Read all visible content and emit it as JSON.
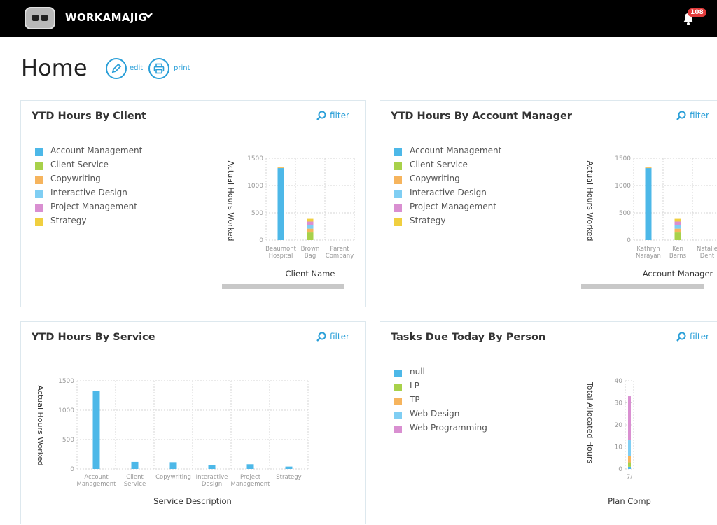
{
  "app": {
    "brand": "WORKAMAJIG",
    "notification_count": "108"
  },
  "page": {
    "title": "Home",
    "edit_label": "edit",
    "print_label": "print"
  },
  "colors": {
    "accent": "#2a9fd8",
    "Account Management": "#4db8e8",
    "Client Service": "#a8d14a",
    "Copywriting": "#f6b45d",
    "Interactive Design": "#7fcef3",
    "Project Management": "#d98fd1",
    "Strategy": "#f0cf3f"
  },
  "panels": {
    "client": {
      "title": "YTD Hours By Client",
      "filter_label": "filter",
      "legend": [
        "Account Management",
        "Client Service",
        "Copywriting",
        "Interactive Design",
        "Project Management",
        "Strategy"
      ]
    },
    "manager": {
      "title": "YTD Hours By Account Manager",
      "filter_label": "filter",
      "legend": [
        "Account Management",
        "Client Service",
        "Copywriting",
        "Interactive Design",
        "Project Management",
        "Strategy"
      ]
    },
    "service": {
      "title": "YTD Hours By Service",
      "filter_label": "filter"
    },
    "tasks": {
      "title": "Tasks Due Today By Person",
      "filter_label": "filter",
      "legend": [
        "null",
        "LP",
        "TP",
        "Web Design",
        "Web Programming"
      ],
      "legend_colors": [
        "#4db8e8",
        "#a8d14a",
        "#f6b45d",
        "#7fcef3",
        "#d98fd1"
      ]
    }
  },
  "chart_data": [
    {
      "id": "client",
      "type": "bar",
      "stacked": true,
      "xlabel": "Client Name",
      "ylabel": "Actual Hours Worked",
      "ylim": [
        0,
        1500
      ],
      "yticks": [
        "0",
        "500",
        "1000",
        "1500"
      ],
      "categories": [
        [
          "Beaumont",
          "Hospital"
        ],
        [
          "Brown",
          "Bag"
        ],
        [
          "Parent",
          "Company"
        ]
      ],
      "series": [
        {
          "name": "Account Management",
          "values": [
            1320,
            0,
            0
          ]
        },
        {
          "name": "Client Service",
          "values": [
            0,
            140,
            0
          ]
        },
        {
          "name": "Copywriting",
          "values": [
            10,
            70,
            0
          ]
        },
        {
          "name": "Interactive Design",
          "values": [
            0,
            60,
            0
          ]
        },
        {
          "name": "Project Management",
          "values": [
            0,
            70,
            0
          ]
        },
        {
          "name": "Strategy",
          "values": [
            10,
            50,
            0
          ]
        }
      ]
    },
    {
      "id": "manager",
      "type": "bar",
      "stacked": true,
      "xlabel": "Account Manager",
      "ylabel": "Actual Hours Worked",
      "ylim": [
        0,
        1500
      ],
      "yticks": [
        "0",
        "500",
        "1000",
        "1500"
      ],
      "categories": [
        [
          "Kathryn",
          "Narayan"
        ],
        [
          "Ken",
          "Barns"
        ],
        [
          "Natalie",
          "Dent"
        ]
      ],
      "series": [
        {
          "name": "Account Management",
          "values": [
            1320,
            0,
            0
          ]
        },
        {
          "name": "Client Service",
          "values": [
            0,
            140,
            0
          ]
        },
        {
          "name": "Copywriting",
          "values": [
            10,
            70,
            0
          ]
        },
        {
          "name": "Interactive Design",
          "values": [
            0,
            60,
            0
          ]
        },
        {
          "name": "Project Management",
          "values": [
            0,
            70,
            0
          ]
        },
        {
          "name": "Strategy",
          "values": [
            10,
            50,
            0
          ]
        }
      ]
    },
    {
      "id": "service",
      "type": "bar",
      "xlabel": "Service Description",
      "ylabel": "Actual Hours Worked",
      "ylim": [
        0,
        1500
      ],
      "yticks": [
        "0",
        "500",
        "1000",
        "1500"
      ],
      "categories": [
        [
          "Account",
          "Management"
        ],
        [
          "Client",
          "Service"
        ],
        [
          "Copywriting"
        ],
        [
          "Interactive",
          "Design"
        ],
        [
          "Project",
          "Management"
        ],
        [
          "Strategy"
        ]
      ],
      "values": [
        1330,
        120,
        115,
        60,
        80,
        40
      ]
    },
    {
      "id": "tasks",
      "type": "bar",
      "stacked": true,
      "xlabel": "Plan Comp",
      "ylabel": "Total Allocated Hours",
      "ylim": [
        0,
        40
      ],
      "yticks": [
        "0",
        "10",
        "20",
        "30",
        "40"
      ],
      "categories": [
        [
          "7/"
        ]
      ],
      "series": [
        {
          "name": "null",
          "values": [
            1
          ]
        },
        {
          "name": "LP",
          "values": [
            2
          ]
        },
        {
          "name": "TP",
          "values": [
            3
          ]
        },
        {
          "name": "Web Design",
          "values": [
            7
          ]
        },
        {
          "name": "Web Programming",
          "values": [
            20
          ]
        }
      ]
    }
  ]
}
